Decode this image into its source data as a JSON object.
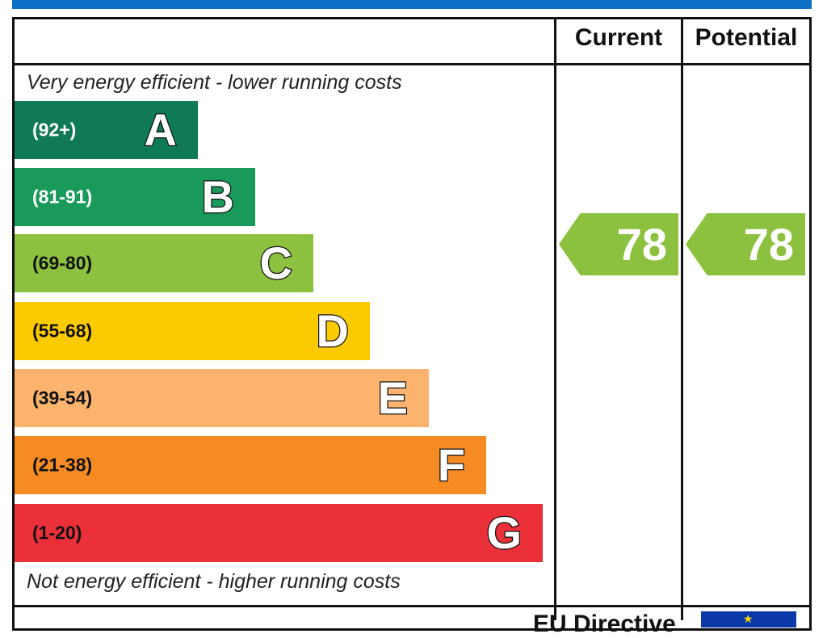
{
  "columns": {
    "current": "Current",
    "potential": "Potential"
  },
  "notes": {
    "top": "Very energy efficient - lower running costs",
    "bottom": "Not energy efficient - higher running costs"
  },
  "footer": {
    "text": "EU Directive"
  },
  "chart_data": {
    "type": "bar",
    "bands": [
      {
        "range": "(92+)",
        "letter": "A",
        "color": "#0f7a55",
        "range_color": "#ffffff"
      },
      {
        "range": "(81-91)",
        "letter": "B",
        "color": "#1a9a5a",
        "range_color": "#ffffff"
      },
      {
        "range": "(69-80)",
        "letter": "C",
        "color": "#8cc13f",
        "range_color": "#111111"
      },
      {
        "range": "(55-68)",
        "letter": "D",
        "color": "#fcca00",
        "range_color": "#111111"
      },
      {
        "range": "(39-54)",
        "letter": "E",
        "color": "#fbb36e",
        "range_color": "#111111"
      },
      {
        "range": "(21-38)",
        "letter": "F",
        "color": "#f68a23",
        "range_color": "#111111"
      },
      {
        "range": "(1-20)",
        "letter": "G",
        "color": "#ec3039",
        "range_color": "#111111"
      }
    ],
    "current": {
      "value": 78,
      "label": "78",
      "color": "#8cc13f"
    },
    "potential": {
      "value": 78,
      "label": "78",
      "color": "#8cc13f"
    }
  }
}
